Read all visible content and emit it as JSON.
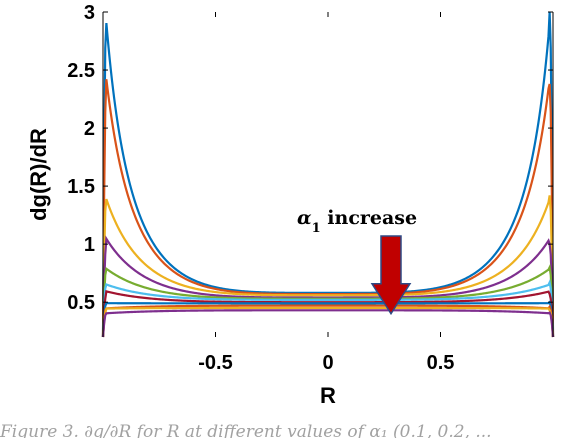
{
  "chart_data": {
    "type": "line",
    "title": "",
    "xlabel": "R",
    "ylabel": "dg(R)/dR",
    "xlim": [
      -1,
      1
    ],
    "ylim": [
      0.2,
      3
    ],
    "x_ticks": [
      -0.5,
      0,
      0.5
    ],
    "x_tick_labels": [
      "-0.5",
      "0",
      "0.5"
    ],
    "y_ticks": [
      0.5,
      1,
      1.5,
      2,
      2.5,
      3
    ],
    "y_tick_labels": [
      "0.5",
      "1",
      "1.5",
      "2",
      "2.5",
      "3"
    ],
    "grid": false,
    "legend": "none",
    "annotation": {
      "symbol": "α",
      "subscript": "1",
      "text": " increase",
      "arrow_x": 0.28,
      "arrow_y_top": 1.07,
      "arrow_y_bottom": 0.4,
      "arrow_color": "#c00000"
    },
    "series": [
      {
        "color": "#0072bd",
        "edge": 3.0,
        "center": 0.58
      },
      {
        "color": "#d95319",
        "edge": 2.38,
        "center": 0.57
      },
      {
        "color": "#edb120",
        "edge": 1.42,
        "center": 0.56
      },
      {
        "color": "#7e2f8e",
        "edge": 1.0,
        "center": 0.54
      },
      {
        "color": "#77ac30",
        "edge": 0.8,
        "center": 0.53
      },
      {
        "color": "#4dbeee",
        "edge": 0.67,
        "center": 0.52
      },
      {
        "color": "#a2142f",
        "edge": 0.57,
        "center": 0.5
      },
      {
        "color": "#0072bd",
        "edge": 0.5,
        "center": 0.49
      },
      {
        "color": "#d95319",
        "edge": 0.46,
        "center": 0.47
      },
      {
        "color": "#edb120",
        "edge": 0.43,
        "center": 0.45
      },
      {
        "color": "#7e2f8e",
        "edge": 0.41,
        "center": 0.43
      }
    ],
    "endpoint_value": 0.2
  },
  "caption": {
    "text": "Figure 3. ∂g/∂R for R at different values of α₁ (0.1, 0.2, ..."
  }
}
